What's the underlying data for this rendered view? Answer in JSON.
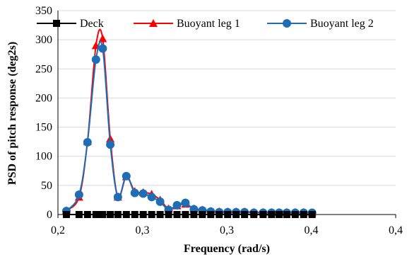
{
  "chart_data": {
    "type": "line",
    "xlabel": "Frequency (rad/s)",
    "ylabel": "PSD of pitch response (deg2s)",
    "xlim": [
      0.2,
      0.4
    ],
    "ylim": [
      0,
      350
    ],
    "x_ticks": [
      0.2,
      0.25,
      0.3,
      0.35,
      0.4
    ],
    "x_tick_labels": [
      "0,2",
      "0,3",
      "0,3",
      "0,4",
      "0,4"
    ],
    "y_ticks": [
      0,
      50,
      100,
      150,
      200,
      250,
      300,
      350
    ],
    "y_tick_labels": [
      "0",
      "50",
      "100",
      "150",
      "200",
      "250",
      "300",
      "350"
    ],
    "grid": "horizontal",
    "legend_position": "top",
    "x": [
      0.205,
      0.2125,
      0.2175,
      0.2225,
      0.2265,
      0.231,
      0.2355,
      0.2405,
      0.2455,
      0.2505,
      0.2555,
      0.2605,
      0.2655,
      0.2705,
      0.2755,
      0.2805,
      0.2855,
      0.2905,
      0.2955,
      0.3005,
      0.3055,
      0.3105,
      0.316,
      0.3215,
      0.3265,
      0.331,
      0.3355,
      0.3405,
      0.3455,
      0.3505
    ],
    "series": [
      {
        "name": "Deck",
        "color": "#000000",
        "marker": "square",
        "values": [
          0,
          0,
          0,
          0,
          0,
          0,
          0,
          0,
          0,
          0,
          0,
          0,
          0,
          0,
          0,
          0,
          0,
          0,
          0,
          0,
          0,
          0,
          0,
          0,
          0,
          0,
          0,
          0,
          0,
          0
        ]
      },
      {
        "name": "Buoyant leg 1",
        "color": "#ff0000",
        "marker": "triangle",
        "values": [
          7,
          30,
          125,
          290,
          302,
          130,
          30,
          65,
          40,
          38,
          35,
          25,
          10,
          15,
          18,
          10,
          8,
          6,
          5,
          5,
          5,
          5,
          4,
          4,
          4,
          4,
          4,
          4,
          4,
          3
        ]
      },
      {
        "name": "Buoyant leg 2",
        "color": "#1f6db5",
        "marker": "circle",
        "values": [
          6,
          34,
          124,
          266,
          285,
          120,
          30,
          66,
          37,
          36,
          30,
          22,
          8,
          16,
          20,
          9,
          7,
          5,
          4,
          4,
          4,
          4,
          3,
          3,
          3,
          3,
          3,
          3,
          3,
          3
        ]
      }
    ]
  }
}
